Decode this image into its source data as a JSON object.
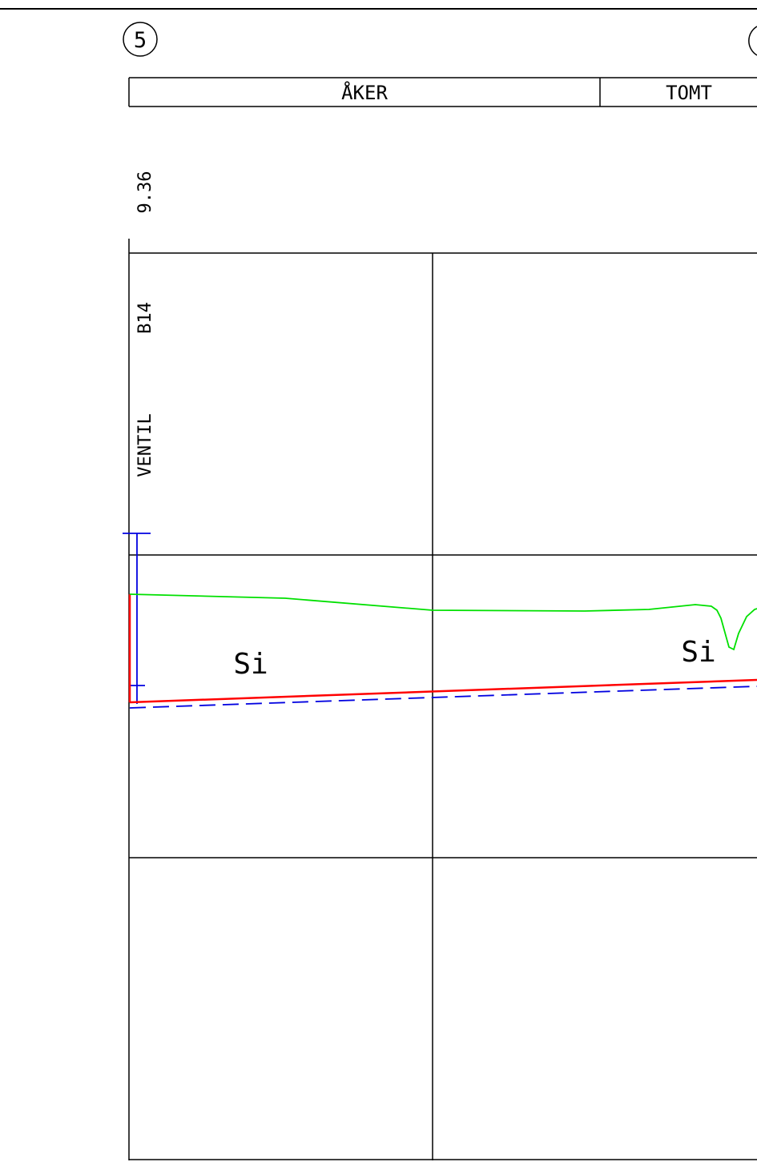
{
  "markers": {
    "section_start": "5"
  },
  "land_use": {
    "left_zone": "ÅKER",
    "right_zone": "TOMT"
  },
  "chainage": {
    "value": "9.36"
  },
  "labels": {
    "valve": "VENTIL",
    "code": "B14",
    "soil_left": "Si",
    "soil_right": "Si"
  },
  "colors": {
    "ground_line": "#00e000",
    "pipe_line": "#ff0000",
    "dashed_line": "#0000e0",
    "frame": "#000000"
  }
}
